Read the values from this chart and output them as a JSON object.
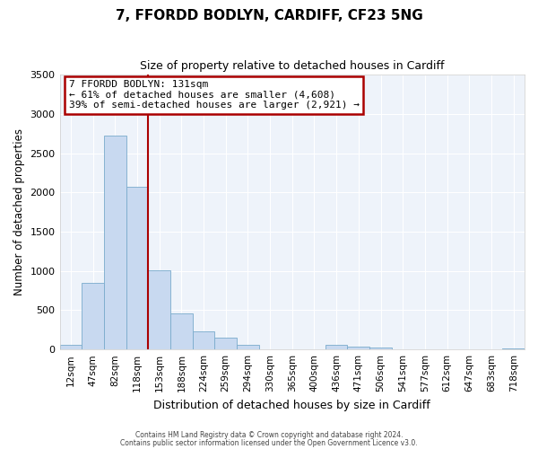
{
  "title": "7, FFORDD BODLYN, CARDIFF, CF23 5NG",
  "subtitle": "Size of property relative to detached houses in Cardiff",
  "xlabel": "Distribution of detached houses by size in Cardiff",
  "ylabel": "Number of detached properties",
  "bin_labels": [
    "12sqm",
    "47sqm",
    "82sqm",
    "118sqm",
    "153sqm",
    "188sqm",
    "224sqm",
    "259sqm",
    "294sqm",
    "330sqm",
    "365sqm",
    "400sqm",
    "436sqm",
    "471sqm",
    "506sqm",
    "541sqm",
    "577sqm",
    "612sqm",
    "647sqm",
    "683sqm",
    "718sqm"
  ],
  "bar_values": [
    55,
    850,
    2720,
    2070,
    1010,
    455,
    235,
    150,
    60,
    0,
    0,
    0,
    60,
    35,
    25,
    0,
    0,
    0,
    0,
    0,
    15
  ],
  "bar_color": "#c8d9f0",
  "bar_edgecolor": "#7aabcc",
  "vline_color": "#aa0000",
  "vline_x_index": 3,
  "annotation_title": "7 FFORDD BODLYN: 131sqm",
  "annotation_line1": "← 61% of detached houses are smaller (4,608)",
  "annotation_line2": "39% of semi-detached houses are larger (2,921) →",
  "annotation_box_edgecolor": "#aa0000",
  "ylim": [
    0,
    3500
  ],
  "yticks": [
    0,
    500,
    1000,
    1500,
    2000,
    2500,
    3000,
    3500
  ],
  "footer1": "Contains HM Land Registry data © Crown copyright and database right 2024.",
  "footer2": "Contains public sector information licensed under the Open Government Licence v3.0.",
  "bg_color": "#ffffff",
  "plot_bg_color": "#eef3fa",
  "grid_color": "#ffffff"
}
